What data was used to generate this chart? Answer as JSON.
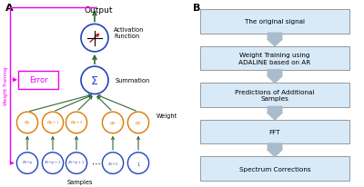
{
  "panel_A_label": "A",
  "panel_B_label": "B",
  "output_label": "Output",
  "activation_label": "Activation\nFunction",
  "summation_label": "Σ",
  "weight_label": "Weight",
  "samples_label": "Samples",
  "error_label": "Error",
  "weight_training_label": "Weight Training",
  "node_blue": "#2244bb",
  "node_orange": "#dd7700",
  "green": "#336633",
  "magenta": "#ee00ee",
  "red": "#cc0000",
  "box_fill": "#d8eaf8",
  "box_edge": "#999999",
  "arr_fill": "#aabbcc",
  "bg": "#ffffff",
  "weight_labels": [
    "$\\alpha_p$",
    "$\\alpha_{p-1}$",
    "$\\alpha_{p-2}$",
    "$\\alpha_0$",
    "$\\alpha_1$"
  ],
  "sample_labels": [
    "$x_{t-p}$",
    "$x_{t-p-1}$",
    "$x_{t-p+1}$",
    "$x_{t-1}$",
    "$1$"
  ],
  "flow_labels": [
    "The original signal",
    "Weight Training using\nADALINE based on AR",
    "Predictions of Additional\nSamples",
    "FFT",
    "Spectrum Corrections"
  ]
}
